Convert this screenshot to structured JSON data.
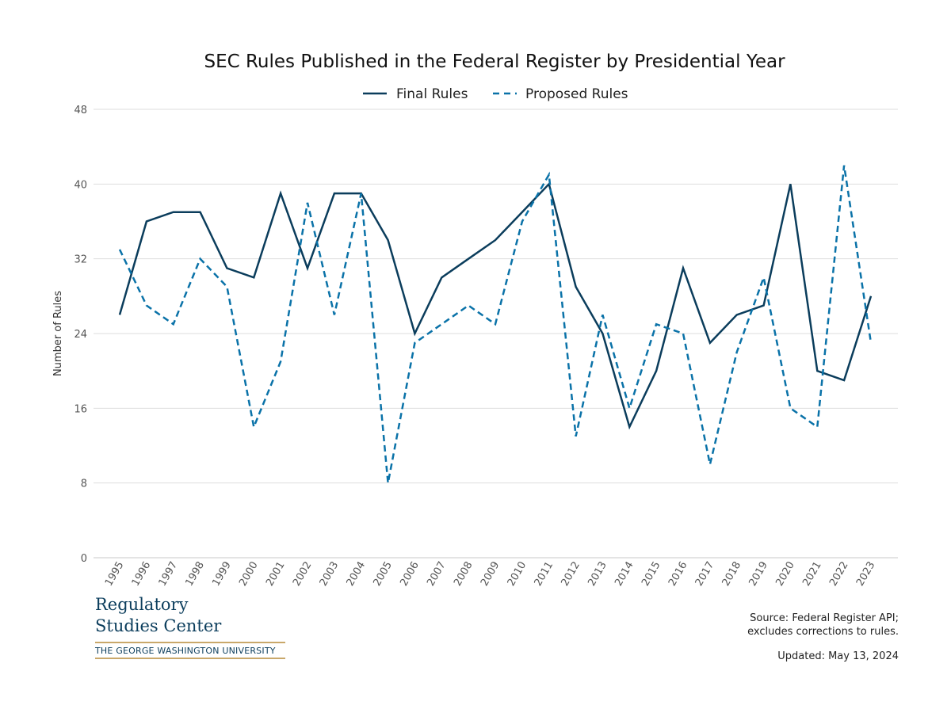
{
  "chart_data": {
    "type": "line",
    "title": "SEC Rules Published in the Federal Register by Presidential Year",
    "xlabel": "",
    "ylabel": "Number of Rules",
    "ylim": [
      0,
      48
    ],
    "yticks": [
      0,
      8,
      16,
      24,
      32,
      40,
      48
    ],
    "grid": true,
    "legend_position": "top-center",
    "categories": [
      "1995",
      "1996",
      "1997",
      "1998",
      "1999",
      "2000",
      "2001",
      "2002",
      "2003",
      "2004",
      "2005",
      "2006",
      "2007",
      "2008",
      "2009",
      "2010",
      "2011",
      "2012",
      "2013",
      "2014",
      "2015",
      "2016",
      "2017",
      "2018",
      "2019",
      "2020",
      "2021",
      "2022",
      "2023"
    ],
    "series": [
      {
        "name": "Final Rules",
        "style": "solid",
        "color": "#0b3d5c",
        "values": [
          26,
          36,
          37,
          37,
          31,
          30,
          39,
          31,
          39,
          39,
          34,
          24,
          30,
          32,
          34,
          37,
          40,
          29,
          24,
          14,
          20,
          31,
          23,
          26,
          27,
          40,
          20,
          19,
          28
        ]
      },
      {
        "name": "Proposed Rules",
        "style": "dashed",
        "color": "#0a72a8",
        "values": [
          33,
          27,
          25,
          32,
          29,
          14,
          21,
          38,
          26,
          39,
          8,
          23,
          25,
          27,
          25,
          36,
          41,
          13,
          26,
          16,
          25,
          24,
          10,
          22,
          30,
          16,
          14,
          42,
          23
        ]
      }
    ]
  },
  "branding": {
    "line1": "Regulatory",
    "line2": "Studies Center",
    "university": "THE GEORGE WASHINGTON UNIVERSITY"
  },
  "footer": {
    "source_line1": "Source: Federal Register API;",
    "source_line2": "excludes corrections to rules.",
    "updated": "Updated: May 13, 2024"
  }
}
